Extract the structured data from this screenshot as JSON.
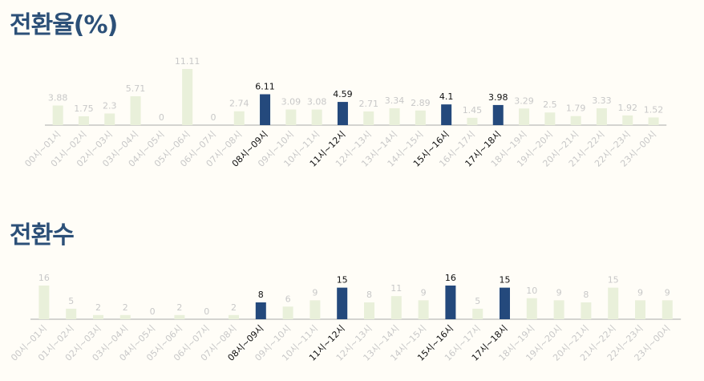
{
  "sections": [
    {
      "title": "전환율(%)",
      "chart_data": {
        "type": "bar",
        "categories": [
          "00시~01시",
          "01시~02시",
          "02시~03시",
          "03시~04시",
          "04시~05시",
          "05시~06시",
          "06시~07시",
          "07시~08시",
          "08시~09시",
          "09시~10시",
          "10시~11시",
          "11시~12시",
          "12시~13시",
          "13시~14시",
          "14시~15시",
          "15시~16시",
          "16시~17시",
          "17시~18시",
          "18시~19시",
          "19시~20시",
          "20시~21시",
          "21시~22시",
          "22시~23시",
          "23시~00시"
        ],
        "values": [
          3.88,
          1.75,
          2.3,
          5.71,
          0,
          11.11,
          0,
          2.74,
          6.11,
          3.09,
          3.08,
          4.59,
          2.71,
          3.34,
          2.89,
          4.1,
          1.45,
          3.98,
          3.29,
          2.5,
          1.79,
          3.33,
          1.92,
          1.52
        ],
        "value_labels": [
          "3.88",
          "1.75",
          "2.3",
          "5.71",
          "0",
          "11.11",
          "0",
          "2.74",
          "6.11",
          "3.09",
          "3.08",
          "4.59",
          "2.71",
          "3.34",
          "2.89",
          "4.1",
          "1.45",
          "3.98",
          "3.29",
          "2.5",
          "1.79",
          "3.33",
          "1.92",
          "1.52"
        ],
        "highlighted": [
          "08시~09시",
          "11시~12시",
          "15시~16시",
          "17시~18시"
        ],
        "ylim": [
          0,
          11.11
        ],
        "grid": false
      }
    },
    {
      "title": "전환수",
      "chart_data": {
        "type": "bar",
        "categories": [
          "00시~01시",
          "01시~02시",
          "02시~03시",
          "03시~04시",
          "04시~05시",
          "05시~06시",
          "06시~07시",
          "07시~08시",
          "08시~09시",
          "09시~10시",
          "10시~11시",
          "11시~12시",
          "12시~13시",
          "13시~14시",
          "14시~15시",
          "15시~16시",
          "16시~17시",
          "17시~18시",
          "18시~19시",
          "19시~20시",
          "20시~21시",
          "21시~22시",
          "22시~23시",
          "23시~00시"
        ],
        "values": [
          16,
          5,
          2,
          2,
          0,
          2,
          0,
          2,
          8,
          6,
          9,
          15,
          8,
          11,
          9,
          16,
          5,
          15,
          10,
          9,
          8,
          15,
          9,
          9
        ],
        "value_labels": [
          "16",
          "5",
          "2",
          "2",
          "0",
          "2",
          "0",
          "2",
          "8",
          "6",
          "9",
          "15",
          "8",
          "11",
          "9",
          "16",
          "5",
          "15",
          "10",
          "9",
          "8",
          "15",
          "9",
          "9"
        ],
        "highlighted": [
          "08시~09시",
          "11시~12시",
          "15시~16시",
          "17시~18시"
        ],
        "ylim": [
          0,
          16
        ],
        "grid": false
      }
    }
  ],
  "colors": {
    "title": "#2c5078",
    "bar_normal": "#e9f0da",
    "bar_highlight": "#24497c",
    "label_normal": "#c8c8c8",
    "label_highlight": "#111111",
    "axis": "#aaaaaa"
  }
}
